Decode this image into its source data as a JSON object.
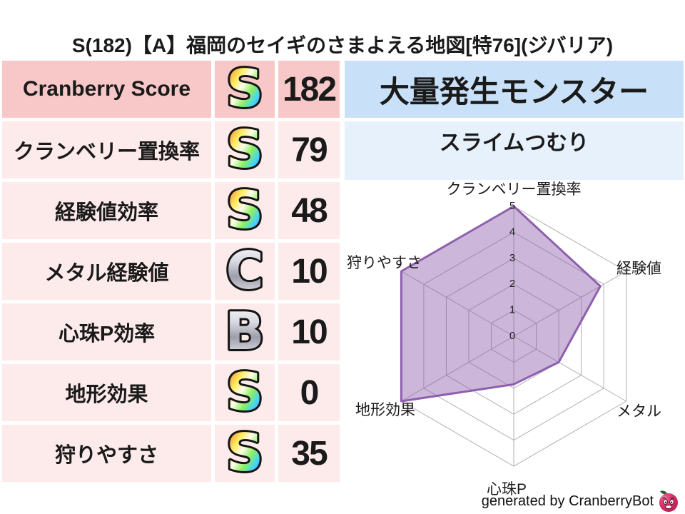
{
  "title": "S(182)【A】福岡のセイギのさまよえる地図[特76](ジバリア)",
  "stats_table": {
    "rows": [
      {
        "label": "Cranberry Score",
        "rank": "S",
        "rank_style": "rainbow",
        "value": "182",
        "highlight": true
      },
      {
        "label": "クランベリー置換率",
        "rank": "S",
        "rank_style": "rainbow",
        "value": "79",
        "highlight": false
      },
      {
        "label": "経験値効率",
        "rank": "S",
        "rank_style": "rainbow",
        "value": "48",
        "highlight": false
      },
      {
        "label": "メタル経験値",
        "rank": "C",
        "rank_style": "silver",
        "value": "10",
        "highlight": false
      },
      {
        "label": "心珠P効率",
        "rank": "B",
        "rank_style": "silver",
        "value": "10",
        "highlight": false
      },
      {
        "label": "地形効果",
        "rank": "S",
        "rank_style": "rainbow",
        "value": "0",
        "highlight": false
      },
      {
        "label": "狩りやすさ",
        "rank": "S",
        "rank_style": "rainbow",
        "value": "35",
        "highlight": false
      }
    ]
  },
  "monster_panel": {
    "header": "大量発生モンスター",
    "name": "スライムつむり"
  },
  "chart_data": {
    "type": "radar",
    "categories": [
      "クランベリー置換率",
      "経験値",
      "メタル",
      "心珠P",
      "地形効果",
      "狩りやすさ"
    ],
    "values": [
      5,
      3.85,
      2,
      1.85,
      5,
      5
    ],
    "axis_range": [
      0,
      5
    ],
    "ticks": [
      "0",
      "1",
      "2",
      "3",
      "4",
      "5"
    ],
    "grid": true,
    "legend": false,
    "colors": {
      "fill": "rgba(142,95,174,0.45)",
      "stroke": "#8e5fae",
      "grid": "#b0b0b0",
      "tick_text": "#222222",
      "label_text": "#1a1a1a"
    }
  },
  "footer": {
    "credit_text": "generated by CranberryBot",
    "logo_icon": "cranberry-mascot-icon"
  },
  "colors": {
    "row_highlight_bg": "#f8c8c8",
    "row_normal_bg": "#fdeaea",
    "monster_header_bg": "#c9e1f8",
    "monster_name_bg": "#e7f1fb",
    "title_text": "#1a1a1a"
  }
}
